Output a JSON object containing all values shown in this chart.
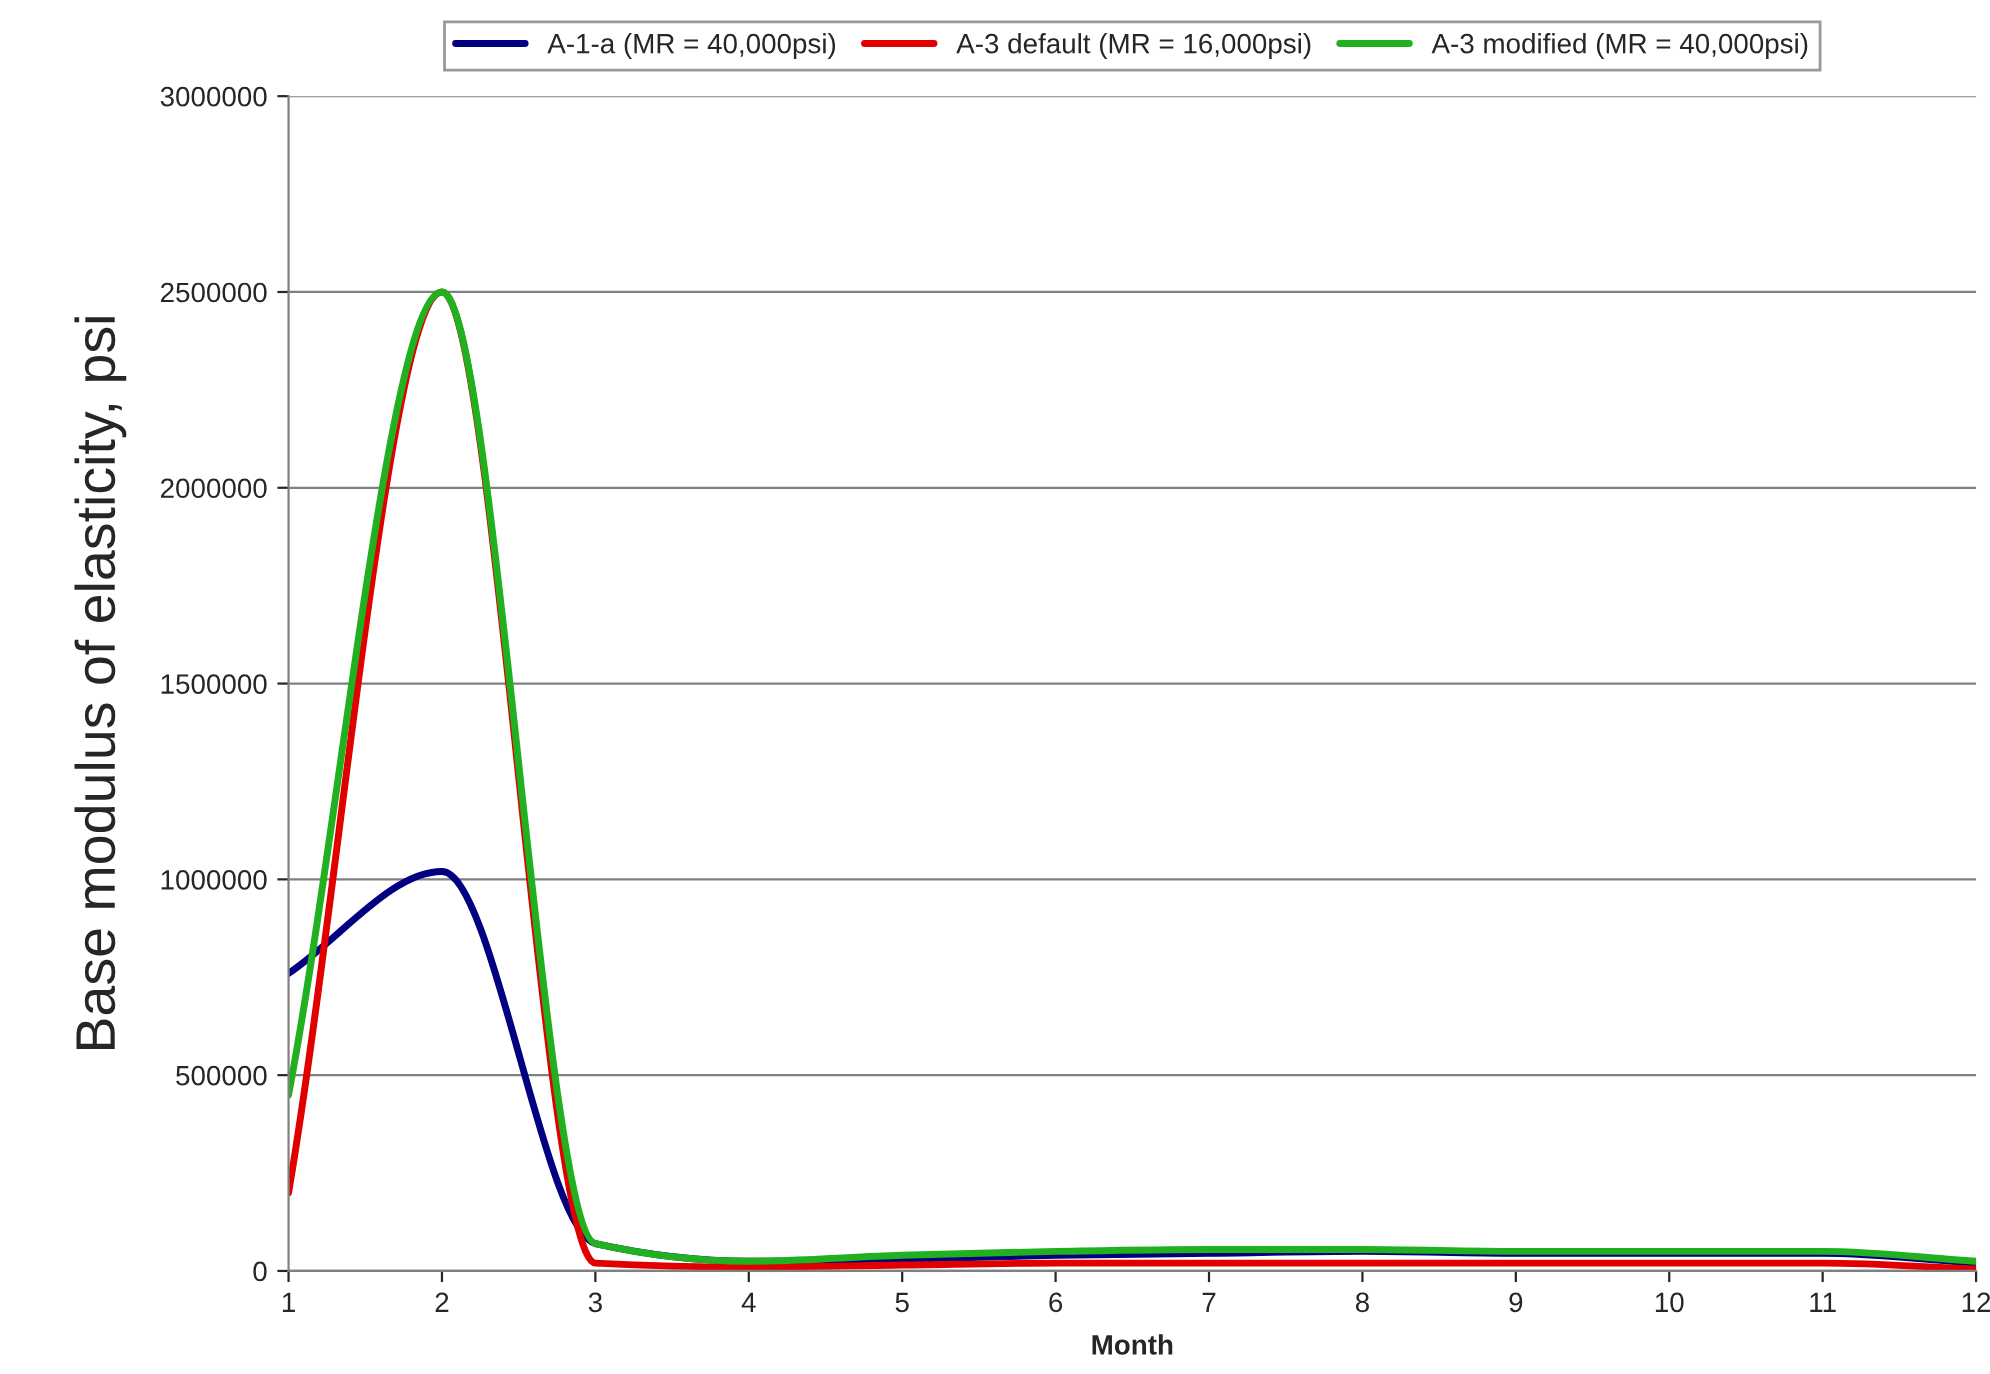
{
  "chart_data": {
    "type": "line",
    "xlabel": "Month",
    "ylabel": "Base modulus of elasticity, psi",
    "x": [
      1,
      2,
      3,
      4,
      5,
      6,
      7,
      8,
      9,
      10,
      11,
      12
    ],
    "series": [
      {
        "name": "A-1-a (MR = 40,000psi)",
        "color": "#000080",
        "values": [
          760000,
          1020000,
          70000,
          25000,
          30000,
          40000,
          45000,
          50000,
          45000,
          45000,
          45000,
          20000
        ]
      },
      {
        "name": "A-3 default (MR = 16,000psi)",
        "color": "#e00000",
        "values": [
          200000,
          2500000,
          20000,
          10000,
          15000,
          20000,
          20000,
          20000,
          20000,
          20000,
          20000,
          5000
        ]
      },
      {
        "name": "A-3 modified (MR = 40,000psi)",
        "color": "#20b020",
        "values": [
          450000,
          2500000,
          70000,
          25000,
          40000,
          50000,
          55000,
          55000,
          50000,
          50000,
          50000,
          25000
        ]
      }
    ],
    "xlim": [
      1,
      12
    ],
    "xticks": [
      1,
      2,
      3,
      4,
      5,
      6,
      7,
      8,
      9,
      10,
      11,
      12
    ],
    "ylim": [
      0,
      3000000
    ],
    "yticks": [
      0,
      500000,
      1000000,
      1500000,
      2000000,
      2500000,
      3000000
    ],
    "grid": "y",
    "legend": "top",
    "marker": "none",
    "line_style": "solid"
  }
}
